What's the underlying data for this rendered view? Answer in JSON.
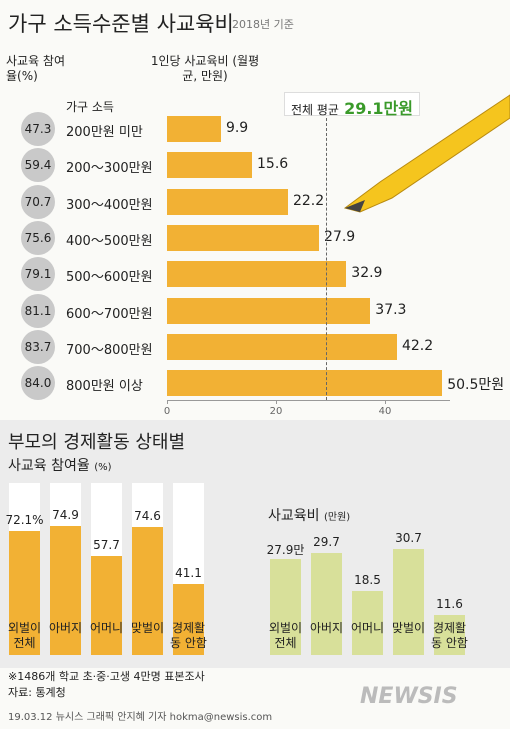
{
  "chart_data": [
    {
      "type": "bar",
      "orientation": "horizontal",
      "title": "가구 소득수준별 사교육비",
      "subtitle": "2018년 기준",
      "category_label": "가구 소득",
      "categories": [
        "200만원 미만",
        "200～300만원",
        "300～400만원",
        "400～500만원",
        "500～600만원",
        "600～700만원",
        "700～800만원",
        "800만원 이상"
      ],
      "series": [
        {
          "name": "사교육 참여율(%)",
          "mark": "circle",
          "color": "#c9c9c9",
          "values": [
            47.3,
            59.4,
            70.7,
            75.6,
            79.1,
            81.1,
            83.7,
            84.0
          ],
          "value_labels": [
            "47.3",
            "59.4",
            "70.7",
            "75.6",
            "79.1",
            "81.1",
            "83.7",
            "84.0"
          ]
        },
        {
          "name": "1인당 사교육비 (월평균, 만원)",
          "mark": "bar",
          "color": "#f2b134",
          "values": [
            9.9,
            15.6,
            22.2,
            27.9,
            32.9,
            37.3,
            42.2,
            50.5
          ],
          "value_labels": [
            "9.9",
            "15.6",
            "22.2",
            "27.9",
            "32.9",
            "37.3",
            "42.2",
            "50.5만원"
          ]
        }
      ],
      "xlim": [
        0,
        52
      ],
      "xticks": [
        0,
        20,
        40
      ],
      "average": {
        "caption": "전체 평균",
        "value": 29.1,
        "label": "29.1만원"
      }
    },
    {
      "type": "bar",
      "title": "사교육 참여율",
      "unit": "(%)",
      "track": "#ffffff",
      "categories": [
        "외벌이 전체",
        "아버지",
        "어머니",
        "맞벌이",
        "경제활동 안함"
      ],
      "values": [
        72.1,
        74.9,
        57.7,
        74.6,
        41.1
      ],
      "value_labels": [
        "72.1%",
        "74.9",
        "57.7",
        "74.6",
        "41.1"
      ],
      "color": "#f2b134",
      "ylim": [
        0,
        100
      ]
    },
    {
      "type": "bar",
      "title": "사교육비",
      "unit": "(만원)",
      "categories": [
        "외벌이 전체",
        "아버지",
        "어머니",
        "맞벌이",
        "경제활동 안함"
      ],
      "values": [
        27.9,
        29.7,
        18.5,
        30.7,
        11.6
      ],
      "value_labels": [
        "27.9만",
        "29.7",
        "18.5",
        "30.7",
        "11.6"
      ],
      "color": "#d8e09a",
      "ylim": [
        0,
        50
      ]
    }
  ],
  "section_title": "부모의 경제활동 상태별",
  "footer": {
    "note": "※1486개 학교 초·중·고생 4만명 표본조사",
    "source": "자료: 통계청",
    "credit": "19.03.12 뉴시스 그래픽 안지혜 기자 hokma@newsis.com",
    "logo": "NEWSIS"
  }
}
